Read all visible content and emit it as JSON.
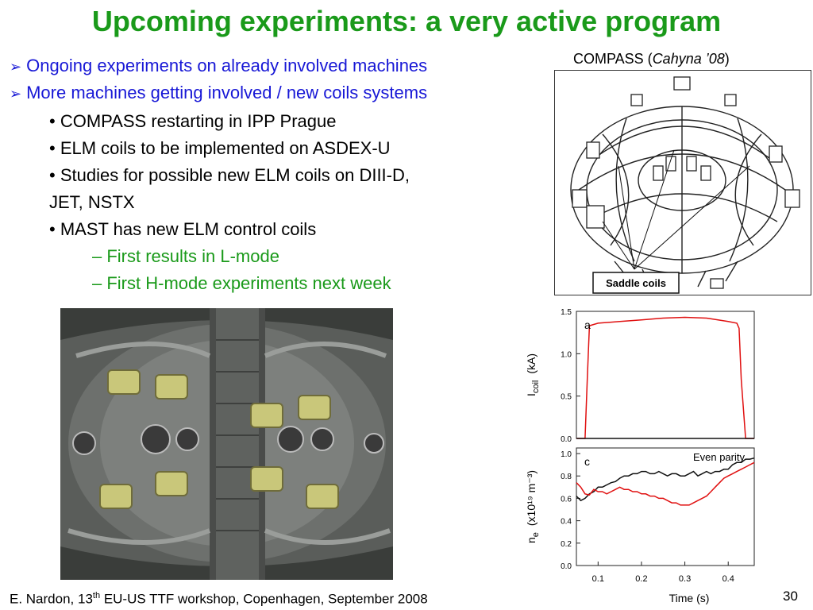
{
  "slide": {
    "title": "Upcoming experiments: a very active program",
    "bullets": [
      {
        "text": "Ongoing experiments on already involved machines"
      },
      {
        "text": "More machines getting involved / new coils systems"
      }
    ],
    "sub_bullets": [
      "• COMPASS restarting in IPP Prague",
      "• ELM coils to be implemented on ASDEX-U",
      "• Studies for possible new ELM coils on DIII-D,",
      "JET, NSTX",
      "• MAST has new ELM control coils"
    ],
    "dash_items": [
      "– First results in L-mode",
      "– First H-mode experiments next week"
    ],
    "compass_caption": {
      "prefix": "COMPASS (",
      "italic": "Cahyna ’08",
      "suffix": ")"
    },
    "saddle_label": "Saddle coils",
    "footer": {
      "prefix": "E. Nardon, 13",
      "sup": "th",
      "suffix": " EU-US TTF workshop, Copenhagen, September 2008"
    },
    "page_number": "30"
  },
  "colors": {
    "title": "#1a9a1a",
    "bullet": "#1818d6",
    "red_series": "#e01010",
    "black_series": "#111111"
  },
  "chart_data": [
    {
      "type": "line",
      "panel_label": "a",
      "ylabel": "I",
      "ylabel_sub": "coil",
      "ylabel_unit": "(kA)",
      "ylim": [
        0,
        1.5
      ],
      "xlim": [
        0.05,
        0.46
      ],
      "y_ticks": [
        "1.5",
        "1.0",
        "0.5",
        "0.0"
      ],
      "y_tick_values": [
        1.5,
        1.0,
        0.5,
        0.0
      ],
      "series": [
        {
          "color": "#e01010",
          "x": [
            0.05,
            0.07,
            0.075,
            0.08,
            0.1,
            0.15,
            0.2,
            0.25,
            0.3,
            0.35,
            0.4,
            0.42,
            0.425,
            0.43,
            0.44,
            0.46
          ],
          "y": [
            0,
            0,
            0.7,
            1.33,
            1.36,
            1.38,
            1.4,
            1.42,
            1.43,
            1.42,
            1.38,
            1.36,
            1.3,
            0.7,
            0,
            0
          ]
        },
        {
          "color": "#111111",
          "x": [
            0.05,
            0.1,
            0.2,
            0.3,
            0.4,
            0.46
          ],
          "y": [
            0.0,
            0.0,
            0.0,
            0.0,
            0.0,
            0.0
          ]
        }
      ]
    },
    {
      "type": "line",
      "panel_label": "c",
      "annotation": "Even parity",
      "ylabel": "n",
      "ylabel_sub": "e",
      "ylabel_unit": "(x10¹⁹ m⁻³)",
      "ylim": [
        0,
        1.05
      ],
      "xlim": [
        0.05,
        0.46
      ],
      "y_ticks": [
        "1.0",
        "0.8",
        "0.6",
        "0.4",
        "0.2",
        "0.0"
      ],
      "y_tick_values": [
        1.0,
        0.8,
        0.6,
        0.4,
        0.2,
        0.0
      ],
      "x_ticks": [
        "0.1",
        "0.2",
        "0.3",
        "0.4"
      ],
      "x_tick_values": [
        0.1,
        0.2,
        0.3,
        0.4
      ],
      "xlabel": "Time (s)",
      "series": [
        {
          "color": "#111111",
          "x": [
            0.05,
            0.06,
            0.07,
            0.08,
            0.09,
            0.1,
            0.11,
            0.12,
            0.13,
            0.14,
            0.15,
            0.16,
            0.17,
            0.18,
            0.19,
            0.2,
            0.21,
            0.22,
            0.23,
            0.24,
            0.25,
            0.26,
            0.27,
            0.28,
            0.29,
            0.3,
            0.31,
            0.32,
            0.33,
            0.34,
            0.35,
            0.36,
            0.37,
            0.38,
            0.39,
            0.4,
            0.41,
            0.42,
            0.43,
            0.44,
            0.45,
            0.46
          ],
          "y": [
            0.62,
            0.58,
            0.6,
            0.64,
            0.66,
            0.7,
            0.7,
            0.72,
            0.74,
            0.75,
            0.78,
            0.8,
            0.8,
            0.82,
            0.82,
            0.84,
            0.84,
            0.82,
            0.82,
            0.84,
            0.82,
            0.8,
            0.82,
            0.82,
            0.8,
            0.8,
            0.82,
            0.84,
            0.8,
            0.82,
            0.84,
            0.82,
            0.84,
            0.84,
            0.86,
            0.86,
            0.9,
            0.92,
            0.92,
            0.95,
            0.95,
            0.96
          ]
        },
        {
          "color": "#e01010",
          "x": [
            0.05,
            0.06,
            0.07,
            0.08,
            0.09,
            0.1,
            0.11,
            0.12,
            0.13,
            0.14,
            0.15,
            0.16,
            0.17,
            0.18,
            0.19,
            0.2,
            0.21,
            0.22,
            0.23,
            0.24,
            0.25,
            0.26,
            0.27,
            0.28,
            0.29,
            0.3,
            0.31,
            0.32,
            0.33,
            0.34,
            0.35,
            0.36,
            0.37,
            0.38,
            0.39,
            0.4,
            0.41,
            0.42,
            0.43,
            0.44,
            0.45,
            0.46
          ],
          "y": [
            0.74,
            0.7,
            0.64,
            0.63,
            0.68,
            0.66,
            0.66,
            0.64,
            0.66,
            0.68,
            0.7,
            0.68,
            0.68,
            0.66,
            0.66,
            0.64,
            0.64,
            0.62,
            0.62,
            0.6,
            0.6,
            0.58,
            0.56,
            0.56,
            0.54,
            0.54,
            0.54,
            0.56,
            0.58,
            0.6,
            0.62,
            0.66,
            0.7,
            0.74,
            0.78,
            0.8,
            0.82,
            0.84,
            0.86,
            0.88,
            0.9,
            0.92
          ]
        }
      ]
    }
  ]
}
